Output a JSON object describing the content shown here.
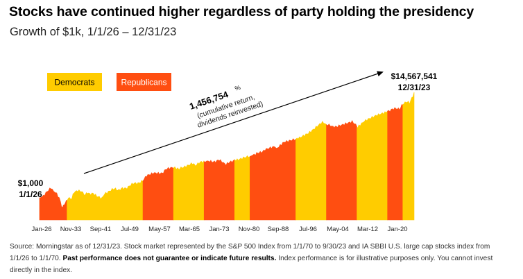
{
  "header": {
    "title": "Stocks have continued higher regardless of party holding the presidency",
    "subtitle": "Growth of $1k, 1/1/26 – 12/31/23"
  },
  "colors": {
    "democrats": "#FFCC00",
    "republicans": "#FF4E11",
    "arrow": "#000000"
  },
  "chart_data": {
    "type": "area",
    "x_tick_labels": [
      "Jan-26",
      "Nov-33",
      "Sep-41",
      "Jul-49",
      "May-57",
      "Mar-65",
      "Jan-73",
      "Nov-80",
      "Sep-88",
      "Jul-96",
      "May-04",
      "Mar-12",
      "Jan-20"
    ],
    "x_range": [
      1926.0,
      2024.0
    ],
    "y_scale": "log",
    "legend": [
      {
        "name": "Democrats",
        "party": "D"
      },
      {
        "name": "Republicans",
        "party": "R"
      }
    ],
    "legend_placement": "top-left",
    "grid": false,
    "start_annotation": {
      "value": "$1,000",
      "date": "1/1/26"
    },
    "end_annotation": {
      "value": "$14,567,541",
      "date": "12/31/23"
    },
    "cumulative_return": {
      "value": "1,456,754",
      "unit": "%",
      "note_line1": "(cumulative return,",
      "note_line2": "dividends reinvested)"
    },
    "party_periods": [
      {
        "start": 1926.0,
        "end": 1933.2,
        "party": "R"
      },
      {
        "start": 1933.2,
        "end": 1953.05,
        "party": "D"
      },
      {
        "start": 1953.05,
        "end": 1961.05,
        "party": "R"
      },
      {
        "start": 1961.05,
        "end": 1969.05,
        "party": "D"
      },
      {
        "start": 1969.05,
        "end": 1977.05,
        "party": "R"
      },
      {
        "start": 1977.05,
        "end": 1981.05,
        "party": "D"
      },
      {
        "start": 1981.05,
        "end": 1993.05,
        "party": "R"
      },
      {
        "start": 1993.05,
        "end": 2001.05,
        "party": "D"
      },
      {
        "start": 2001.05,
        "end": 2009.05,
        "party": "R"
      },
      {
        "start": 2009.05,
        "end": 2017.05,
        "party": "D"
      },
      {
        "start": 2017.05,
        "end": 2021.05,
        "party": "R"
      },
      {
        "start": 2021.05,
        "end": 2024.0,
        "party": "D"
      }
    ],
    "series": [
      {
        "x": [
          1926.0,
          1927.0,
          1928.0,
          1929.0,
          1929.7,
          1930.5,
          1931.5,
          1932.0,
          1932.5,
          1933.0,
          1933.6,
          1934.5,
          1935.0,
          1936.0,
          1937.0,
          1938.0,
          1938.5,
          1940.0,
          1941.0,
          1942.3,
          1943.0,
          1945.0,
          1946.5,
          1948.0,
          1949.5,
          1950.5,
          1953.0,
          1954.0,
          1956.0,
          1957.8,
          1959.0,
          1961.0,
          1962.5,
          1963.0,
          1966.0,
          1966.8,
          1969.0,
          1970.5,
          1973.0,
          1974.8,
          1977.0,
          1980.0,
          1982.5,
          1985.0,
          1987.7,
          1987.9,
          1990.0,
          1994.0,
          1996.0,
          2000.0,
          2002.8,
          2004.0,
          2007.8,
          2009.2,
          2011.0,
          2013.0,
          2015.0,
          2018.0,
          2020.2,
          2021.9,
          2022.8,
          2024.0
        ],
        "y": [
          1000,
          1100,
          1700,
          2500,
          1800,
          1400,
          700,
          380,
          600,
          700,
          950,
          1000,
          1600,
          2000,
          1900,
          1300,
          1600,
          1400,
          1100,
          1000,
          1500,
          2200,
          2100,
          2300,
          2800,
          3500,
          4500,
          7000,
          10000,
          9000,
          13000,
          15000,
          13000,
          16000,
          22000,
          20000,
          27000,
          26000,
          30000,
          20000,
          32000,
          38000,
          50000,
          80000,
          100000,
          90000,
          170000,
          220000,
          350000,
          900000,
          600000,
          700000,
          1000000,
          600000,
          1100000,
          1400000,
          2000000,
          3000000,
          3400000,
          6500000,
          5200000,
          14567541
        ]
      }
    ]
  },
  "footnote": {
    "text1": "Source: Morningstar as of 12/31/23. Stock market represented by the S&P 500 Index from 1/1/70 to 9/30/23 and IA SBBI U.S. large cap stocks index from 1/1/26 to 1/1/70. ",
    "bold": "Past performance does not guarantee or indicate future results.",
    "text2": " Index performance is for illustrative purposes only. You cannot invest directly in the index."
  }
}
